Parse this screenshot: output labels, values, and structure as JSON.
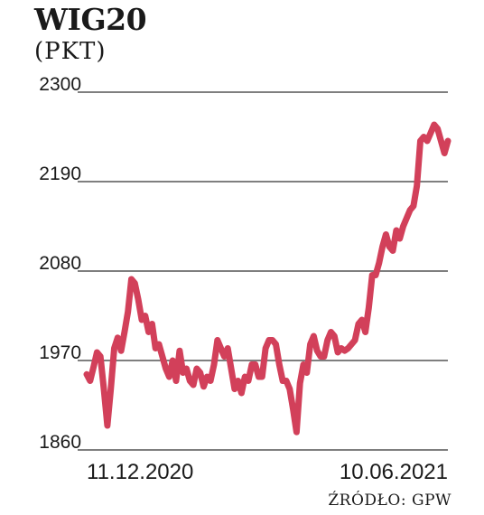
{
  "chart_data": {
    "type": "line",
    "title": "WIG20",
    "subtitle": "(PKT)",
    "source": "ŹRÓDŁO: GPW",
    "ylim": [
      1860,
      2300
    ],
    "yticks": [
      "2300",
      "2190",
      "2080",
      "1970",
      "1860"
    ],
    "ytick_values": [
      2300,
      2190,
      2080,
      1970,
      1860
    ],
    "x_labels": [
      {
        "text": "11.12.2020",
        "index": 0
      },
      {
        "text": "10.06.2021",
        "index": 121
      }
    ],
    "grid": true,
    "line_color": "#d2405a",
    "grid_color": "#333333",
    "series": [
      {
        "values": [
          1953,
          1945,
          1962,
          1980,
          1975,
          1935,
          1890,
          1935,
          1985,
          1998,
          1982,
          2005,
          2030,
          2070,
          2065,
          2045,
          2020,
          2025,
          2005,
          2015,
          1985,
          1990,
          1975,
          1960,
          1950,
          1970,
          1945,
          1982,
          1955,
          1960,
          1945,
          1940,
          1960,
          1955,
          1938,
          1950,
          1945,
          1965,
          1995,
          1985,
          1975,
          1985,
          1960,
          1935,
          1945,
          1930,
          1950,
          1945,
          1965,
          1965,
          1950,
          1950,
          1985,
          1995,
          1995,
          1990,
          1965,
          1945,
          1945,
          1935,
          1910,
          1882,
          1942,
          1965,
          1955,
          1990,
          2000,
          1982,
          1975,
          1975,
          1995,
          2005,
          2000,
          1980,
          1985,
          1982,
          1985,
          1990,
          1995,
          2015,
          2020,
          2005,
          2035,
          2075,
          2075,
          2090,
          2110,
          2125,
          2110,
          2105,
          2130,
          2120,
          2135,
          2145,
          2155,
          2160,
          2185,
          2240,
          2245,
          2240,
          2250,
          2260,
          2255,
          2240,
          2225,
          2240
        ]
      }
    ]
  }
}
